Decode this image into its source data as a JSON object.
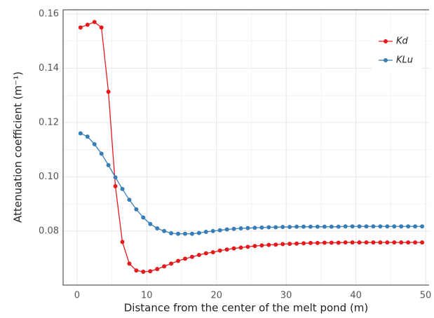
{
  "chart_data": {
    "type": "line",
    "x_label": "Distance from the center of the melt pond (m)",
    "y_label": "Attenuation coefficient (m⁻¹)",
    "x": [
      0.5,
      1.5,
      2.5,
      3.5,
      4.5,
      5.5,
      6.5,
      7.5,
      8.5,
      9.5,
      10.5,
      11.5,
      12.5,
      13.5,
      14.5,
      15.5,
      16.5,
      17.5,
      18.5,
      19.5,
      20.5,
      21.5,
      22.5,
      23.5,
      24.5,
      25.5,
      26.5,
      27.5,
      28.5,
      29.5,
      30.5,
      31.5,
      32.5,
      33.5,
      34.5,
      35.5,
      36.5,
      37.5,
      38.5,
      39.5,
      40.5,
      41.5,
      42.5,
      43.5,
      44.5,
      45.5,
      46.5,
      47.5,
      48.5,
      49.5
    ],
    "series": [
      {
        "name": "Kd",
        "color": "#e41a1c",
        "values": [
          0.155,
          0.156,
          0.157,
          0.155,
          0.1313,
          0.0965,
          0.076,
          0.068,
          0.0655,
          0.065,
          0.0652,
          0.066,
          0.067,
          0.068,
          0.069,
          0.0698,
          0.0705,
          0.0712,
          0.0718,
          0.0722,
          0.0728,
          0.0732,
          0.0736,
          0.0739,
          0.0742,
          0.0745,
          0.0747,
          0.0749,
          0.075,
          0.0752,
          0.0753,
          0.0754,
          0.0755,
          0.0756,
          0.0756,
          0.0757,
          0.0757,
          0.0757,
          0.0758,
          0.0758,
          0.0758,
          0.0758,
          0.0758,
          0.0758,
          0.0758,
          0.0758,
          0.0758,
          0.0758,
          0.0758,
          0.0758
        ]
      },
      {
        "name": "KLu",
        "color": "#377eb8",
        "values": [
          0.116,
          0.1148,
          0.112,
          0.1085,
          0.1043,
          0.0998,
          0.0955,
          0.0915,
          0.088,
          0.085,
          0.0826,
          0.081,
          0.08,
          0.0792,
          0.079,
          0.079,
          0.079,
          0.0793,
          0.0797,
          0.08,
          0.0803,
          0.0806,
          0.0808,
          0.081,
          0.0811,
          0.0812,
          0.0813,
          0.0814,
          0.0814,
          0.0815,
          0.0815,
          0.0816,
          0.0816,
          0.0816,
          0.0816,
          0.0816,
          0.0816,
          0.0816,
          0.0817,
          0.0817,
          0.0817,
          0.0817,
          0.0817,
          0.0817,
          0.0817,
          0.0817,
          0.0817,
          0.0817,
          0.0817,
          0.0817
        ]
      }
    ],
    "xlim": [
      -2,
      50.5
    ],
    "xticks": [
      0,
      10,
      20,
      30,
      40,
      50
    ],
    "ylim": [
      0.0601,
      0.1615
    ],
    "yticks": [
      {
        "value": 0.08,
        "label": "0.08"
      },
      {
        "value": 0.1,
        "label": "0.10"
      },
      {
        "value": 0.12,
        "label": "0.12"
      },
      {
        "value": 0.14,
        "label": "0.14"
      },
      {
        "value": 0.16,
        "label": "0.16"
      }
    ],
    "grid": true,
    "legend": "top-right"
  }
}
